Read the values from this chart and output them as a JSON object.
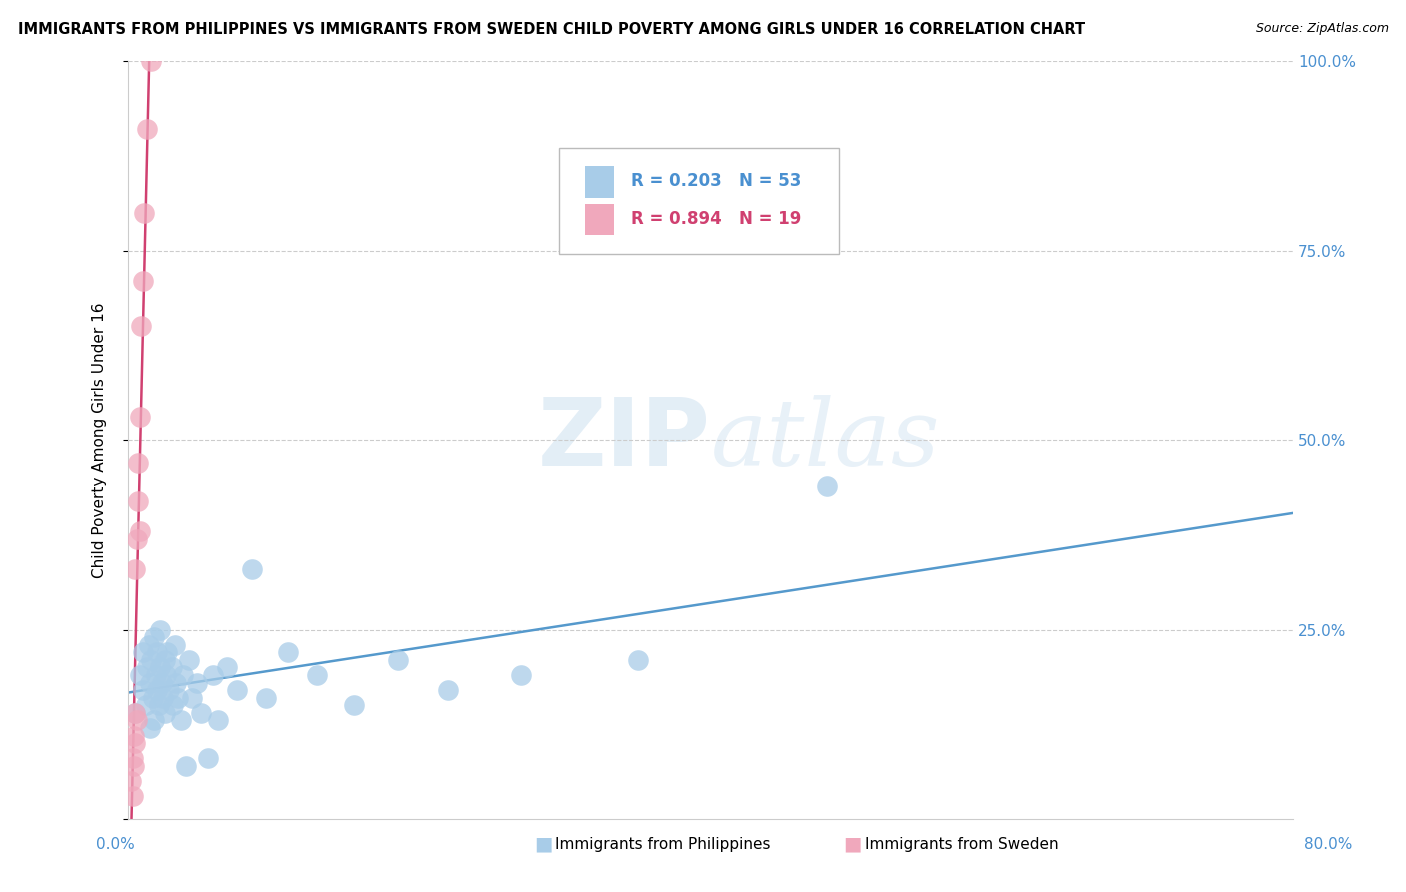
{
  "title": "IMMIGRANTS FROM PHILIPPINES VS IMMIGRANTS FROM SWEDEN CHILD POVERTY AMONG GIRLS UNDER 16 CORRELATION CHART",
  "source": "Source: ZipAtlas.com",
  "ylabel": "Child Poverty Among Girls Under 16",
  "xlim": [
    0.0,
    0.8
  ],
  "ylim": [
    0.0,
    1.0
  ],
  "ytick_vals": [
    0.0,
    0.25,
    0.5,
    0.75,
    1.0
  ],
  "ytick_labels": [
    "",
    "25.0%",
    "50.0%",
    "75.0%",
    "100.0%"
  ],
  "watermark": "ZIPatlas",
  "philippines_R": 0.203,
  "philippines_N": 53,
  "sweden_R": 0.894,
  "sweden_N": 19,
  "philippines_color": "#a8cce8",
  "sweden_color": "#f0a8bc",
  "philippines_line_color": "#5599cc",
  "sweden_line_color": "#d04070",
  "philippines_x": [
    0.005,
    0.008,
    0.01,
    0.01,
    0.012,
    0.013,
    0.014,
    0.015,
    0.015,
    0.016,
    0.017,
    0.018,
    0.018,
    0.019,
    0.02,
    0.02,
    0.021,
    0.022,
    0.022,
    0.023,
    0.024,
    0.025,
    0.025,
    0.026,
    0.027,
    0.028,
    0.03,
    0.031,
    0.032,
    0.033,
    0.034,
    0.036,
    0.038,
    0.04,
    0.042,
    0.044,
    0.047,
    0.05,
    0.055,
    0.058,
    0.062,
    0.068,
    0.075,
    0.085,
    0.095,
    0.11,
    0.13,
    0.155,
    0.185,
    0.22,
    0.27,
    0.35,
    0.48
  ],
  "philippines_y": [
    0.14,
    0.19,
    0.22,
    0.17,
    0.15,
    0.2,
    0.23,
    0.18,
    0.12,
    0.21,
    0.16,
    0.24,
    0.13,
    0.19,
    0.17,
    0.22,
    0.15,
    0.2,
    0.25,
    0.18,
    0.16,
    0.21,
    0.14,
    0.19,
    0.22,
    0.17,
    0.2,
    0.15,
    0.23,
    0.18,
    0.16,
    0.13,
    0.19,
    0.07,
    0.21,
    0.16,
    0.18,
    0.14,
    0.08,
    0.19,
    0.13,
    0.2,
    0.17,
    0.33,
    0.16,
    0.22,
    0.19,
    0.15,
    0.21,
    0.17,
    0.19,
    0.21,
    0.44
  ],
  "sweden_x": [
    0.002,
    0.003,
    0.003,
    0.004,
    0.004,
    0.005,
    0.005,
    0.005,
    0.006,
    0.006,
    0.007,
    0.007,
    0.008,
    0.008,
    0.009,
    0.01,
    0.011,
    0.013,
    0.016
  ],
  "sweden_y": [
    0.05,
    0.08,
    0.03,
    0.07,
    0.11,
    0.1,
    0.14,
    0.33,
    0.13,
    0.37,
    0.42,
    0.47,
    0.38,
    0.53,
    0.65,
    0.71,
    0.8,
    0.91,
    1.0
  ]
}
